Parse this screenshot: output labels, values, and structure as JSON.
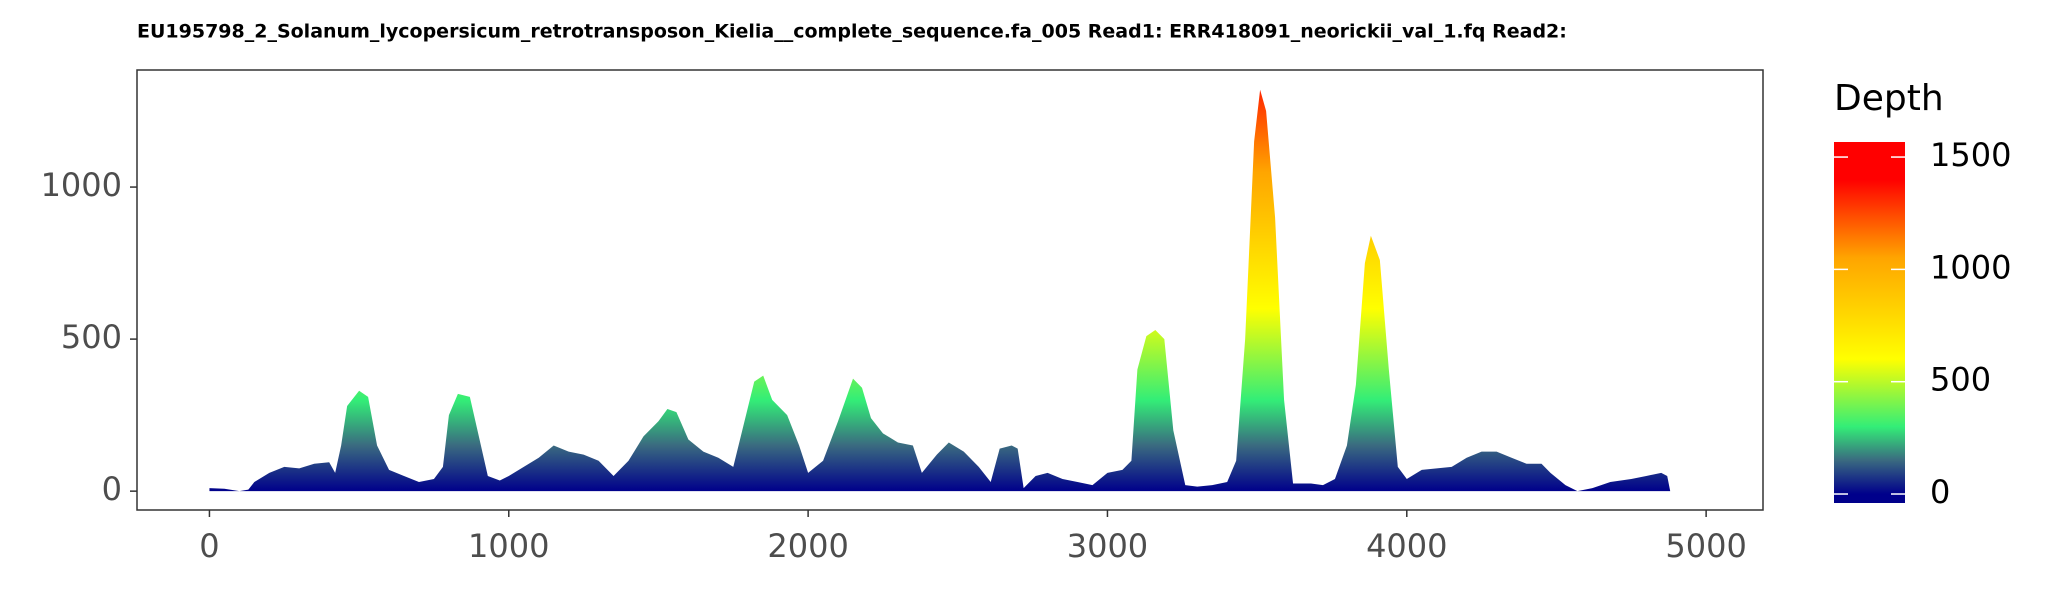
{
  "chart_data": {
    "type": "area",
    "title": "EU195798_2_Solanum_lycopersicum_retrotransposon_Kielia__complete_sequence.fa_005   Read1: ERR418091_neorickii_val_1.fq   Read2:",
    "x": [
      0,
      50,
      100,
      130,
      150,
      200,
      250,
      300,
      350,
      400,
      420,
      440,
      460,
      500,
      530,
      560,
      600,
      650,
      700,
      750,
      780,
      800,
      830,
      870,
      900,
      930,
      970,
      1000,
      1050,
      1100,
      1150,
      1200,
      1250,
      1300,
      1350,
      1400,
      1450,
      1500,
      1530,
      1560,
      1600,
      1650,
      1700,
      1750,
      1780,
      1820,
      1850,
      1880,
      1930,
      1970,
      2000,
      2050,
      2100,
      2150,
      2180,
      2210,
      2250,
      2300,
      2350,
      2380,
      2430,
      2470,
      2520,
      2570,
      2610,
      2640,
      2680,
      2700,
      2720,
      2760,
      2800,
      2850,
      2900,
      2950,
      3000,
      3050,
      3080,
      3100,
      3130,
      3160,
      3190,
      3220,
      3260,
      3300,
      3350,
      3400,
      3430,
      3460,
      3490,
      3510,
      3530,
      3560,
      3590,
      3620,
      3680,
      3720,
      3760,
      3800,
      3830,
      3860,
      3880,
      3910,
      3940,
      3970,
      4000,
      4050,
      4100,
      4150,
      4200,
      4250,
      4300,
      4350,
      4400,
      4450,
      4480,
      4530,
      4570,
      4620,
      4680,
      4750,
      4800,
      4850,
      4870,
      4880,
      4950
    ],
    "values": [
      10,
      8,
      0,
      5,
      30,
      60,
      80,
      75,
      90,
      95,
      60,
      150,
      280,
      330,
      310,
      150,
      70,
      50,
      30,
      40,
      80,
      250,
      320,
      310,
      180,
      50,
      35,
      50,
      80,
      110,
      150,
      130,
      120,
      100,
      50,
      100,
      180,
      230,
      270,
      260,
      170,
      130,
      110,
      80,
      200,
      360,
      380,
      300,
      250,
      150,
      60,
      100,
      230,
      370,
      340,
      240,
      190,
      160,
      150,
      60,
      120,
      160,
      130,
      80,
      30,
      140,
      150,
      140,
      10,
      50,
      60,
      40,
      30,
      20,
      60,
      70,
      100,
      400,
      510,
      530,
      500,
      200,
      20,
      15,
      20,
      30,
      100,
      500,
      1150,
      1320,
      1250,
      900,
      300,
      25,
      25,
      20,
      40,
      150,
      350,
      750,
      840,
      760,
      400,
      80,
      40,
      70,
      75,
      80,
      110,
      130,
      130,
      110,
      90,
      90,
      60,
      20,
      0,
      10,
      30,
      40,
      50,
      60,
      50,
      0,
      0
    ],
    "xlim": [
      -242,
      5190
    ],
    "ylim": [
      -62,
      1385
    ],
    "xticks": [
      0,
      1000,
      2000,
      3000,
      4000,
      5000
    ],
    "yticks": [
      0,
      500,
      1000
    ],
    "grid": false,
    "colorbar": {
      "title": "Depth",
      "lim": [
        -40,
        1567
      ],
      "ticks": [
        0,
        500,
        1000,
        1500
      ],
      "stops": [
        {
          "value": 0,
          "color": "#00008b"
        },
        {
          "value": 150,
          "color": "#3a6a80"
        },
        {
          "value": 300,
          "color": "#33ee77"
        },
        {
          "value": 600,
          "color": "#ffff00"
        },
        {
          "value": 1050,
          "color": "#ffa500"
        },
        {
          "value": 1400,
          "color": "#ff0000"
        }
      ]
    }
  }
}
